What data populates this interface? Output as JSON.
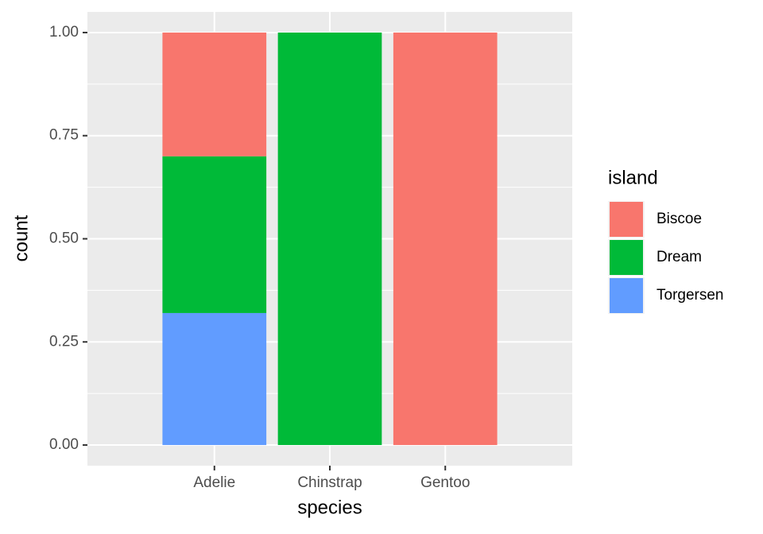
{
  "chart_data": {
    "type": "stacked-bar",
    "x_label": "species",
    "y_label": "count",
    "categories": [
      "Adelie",
      "Chinstrap",
      "Gentoo"
    ],
    "series": [
      {
        "name": "Biscoe",
        "color": "#f8766d",
        "values": [
          0.3,
          0,
          1
        ]
      },
      {
        "name": "Dream",
        "color": "#00ba38",
        "values": [
          0.38,
          1,
          0
        ]
      },
      {
        "name": "Torgersen",
        "color": "#619cff",
        "values": [
          0.32,
          0,
          0
        ]
      }
    ],
    "legend_title": "island",
    "legend_position": "right",
    "ylim": [
      -0.05,
      1.05
    ],
    "yticks": [
      {
        "value": 0,
        "label": "0.00"
      },
      {
        "value": 0.25,
        "label": "0.25"
      },
      {
        "value": 0.5,
        "label": "0.50"
      },
      {
        "value": 0.75,
        "label": "0.75"
      },
      {
        "value": 1,
        "label": "1.00"
      }
    ],
    "grid": true
  }
}
